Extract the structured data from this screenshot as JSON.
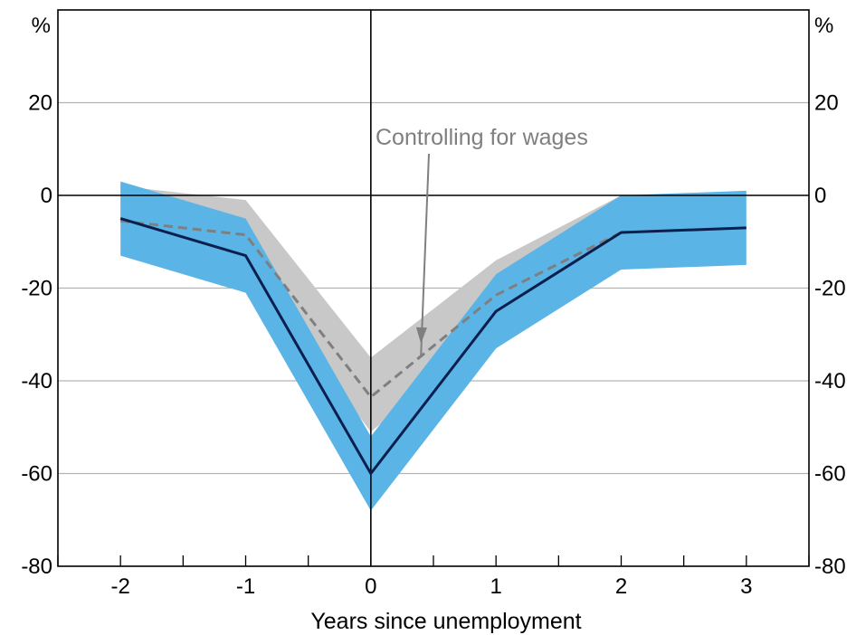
{
  "chart_data": {
    "type": "line",
    "title": "",
    "xlabel": "Years since unemployment",
    "ylabel_left": "%",
    "ylabel_right": "%",
    "x": [
      -2,
      -1,
      0,
      1,
      2,
      3
    ],
    "xlim": [
      -2.5,
      3.5
    ],
    "ylim": [
      -80,
      40
    ],
    "x_ticks": [
      "-2",
      "-1",
      "0",
      "1",
      "2",
      "3"
    ],
    "y_ticks": [
      "20",
      "0",
      "-20",
      "-40",
      "-60",
      "-80"
    ],
    "grid": true,
    "series": [
      {
        "name": "",
        "style": "solid",
        "color": "#0b1f4f",
        "values": [
          -5,
          -13,
          -60,
          -25,
          -8,
          -7
        ],
        "band": {
          "color": "#5ab4e5",
          "lower": [
            -13,
            -21,
            -68,
            -33,
            -16,
            -15
          ],
          "upper": [
            3,
            -5,
            -52,
            -17,
            0,
            1
          ]
        }
      },
      {
        "name": "Controlling for wages",
        "style": "dashed",
        "color": "#7f7f7f",
        "values": [
          -5.5,
          -8.5,
          -43.5,
          -21.5,
          -8,
          null
        ],
        "band": {
          "color": "#c8c8c8",
          "lower": [
            -5,
            -15,
            -51,
            -29,
            -8,
            null
          ],
          "upper": [
            2,
            -1,
            -35,
            -14,
            0,
            null
          ]
        }
      }
    ],
    "annotations": [
      {
        "text": "Controlling for wages",
        "x": 1.1,
        "y": 13,
        "arrow_to": {
          "x": 0.4,
          "y": -32
        }
      }
    ]
  }
}
